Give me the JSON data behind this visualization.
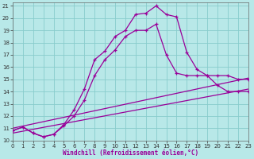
{
  "xlabel": "Windchill (Refroidissement éolien,°C)",
  "bg_color": "#b8e8e8",
  "line_color": "#990099",
  "grid_color": "#88cccc",
  "x_ticks": [
    0,
    1,
    2,
    3,
    4,
    5,
    6,
    7,
    8,
    9,
    10,
    11,
    12,
    13,
    14,
    15,
    16,
    17,
    18,
    19,
    20,
    21,
    22,
    23
  ],
  "y_ticks": [
    10,
    11,
    12,
    13,
    14,
    15,
    16,
    17,
    18,
    19,
    20,
    21
  ],
  "xlim": [
    0,
    23
  ],
  "ylim": [
    10.0,
    21.3
  ],
  "curve_arch_x": [
    0,
    1,
    2,
    3,
    4,
    5,
    6,
    7,
    8,
    9,
    10,
    11,
    12,
    13,
    14,
    15,
    16,
    17,
    18,
    19,
    20,
    21,
    22,
    23
  ],
  "curve_arch_y": [
    10.8,
    11.1,
    10.6,
    10.3,
    10.5,
    11.3,
    12.5,
    14.2,
    16.6,
    17.3,
    18.5,
    19.0,
    20.3,
    20.4,
    21.0,
    20.3,
    20.1,
    17.2,
    15.8,
    15.3,
    14.5,
    14.0,
    14.0,
    14.0
  ],
  "curve_mid_x": [
    0,
    1,
    2,
    3,
    4,
    5,
    6,
    7,
    8,
    9,
    10,
    11,
    12,
    13,
    14,
    15,
    16,
    17,
    18,
    19,
    20,
    21,
    22,
    23
  ],
  "curve_mid_y": [
    10.8,
    11.1,
    10.6,
    10.3,
    10.5,
    11.2,
    12.0,
    13.3,
    15.3,
    16.6,
    17.4,
    18.5,
    19.0,
    19.0,
    19.5,
    17.0,
    15.5,
    15.3,
    15.3,
    15.3,
    15.3,
    15.3,
    15.0,
    15.0
  ],
  "line1_x": [
    0,
    23
  ],
  "line1_y": [
    11.0,
    15.1
  ],
  "line2_x": [
    0,
    23
  ],
  "line2_y": [
    10.6,
    14.2
  ]
}
